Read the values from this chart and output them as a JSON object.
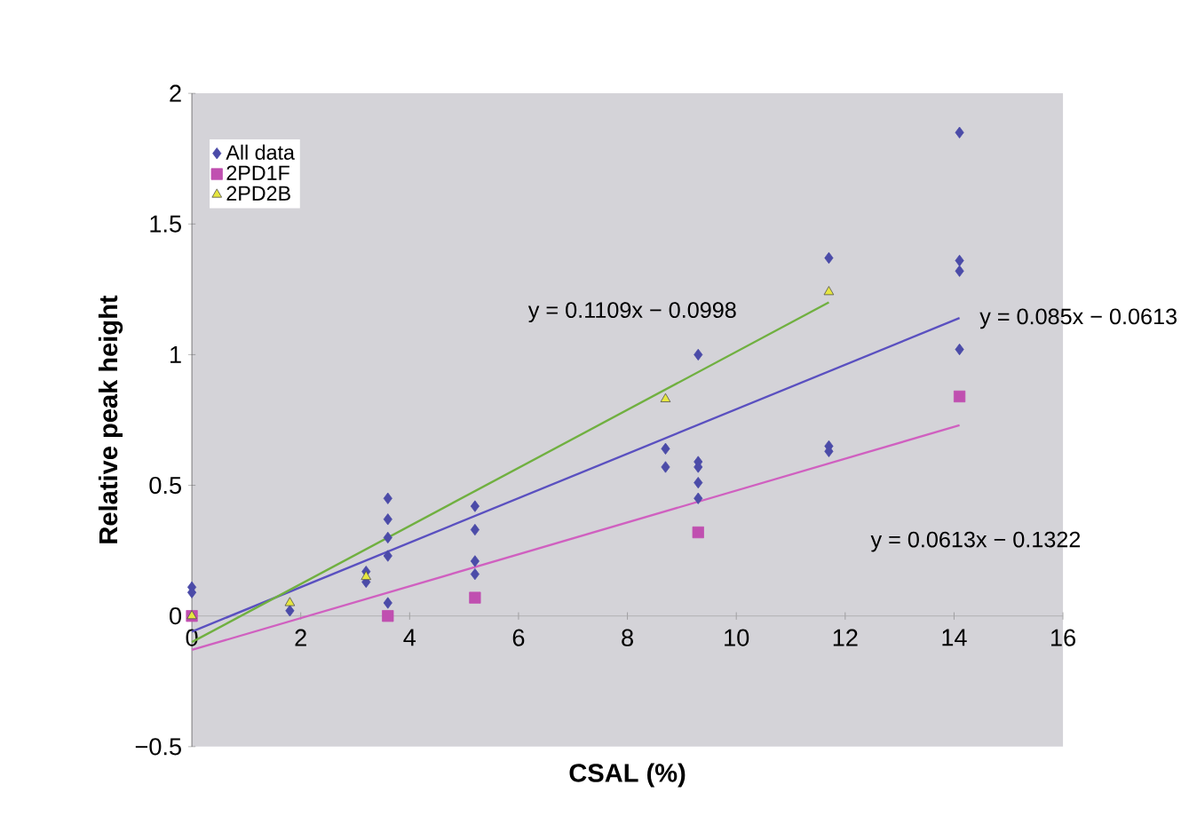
{
  "chart_data": {
    "type": "scatter",
    "xlabel": "CSAL (%)",
    "ylabel": "Relative peak height",
    "xlim": [
      0,
      16
    ],
    "ylim": [
      -0.5,
      2
    ],
    "xticks": [
      0,
      2,
      4,
      6,
      8,
      10,
      12,
      14,
      16
    ],
    "yticks": [
      {
        "value": -0.5,
        "label": "−0.5"
      },
      0,
      0.5,
      1,
      1.5,
      2
    ],
    "grid": false,
    "legend": "top left",
    "series": [
      {
        "name": "All data",
        "marker": "diamond",
        "color": "#4b4ba8",
        "x": [
          0,
          0,
          1.8,
          3.2,
          3.2,
          3.6,
          3.6,
          3.6,
          3.6,
          3.6,
          5.2,
          5.2,
          5.2,
          5.2,
          8.7,
          8.7,
          9.3,
          9.3,
          9.3,
          9.3,
          9.3,
          11.7,
          11.7,
          11.7,
          14.1,
          14.1,
          14.1,
          14.1
        ],
        "values": [
          0.11,
          0.09,
          0.02,
          0.13,
          0.17,
          0.45,
          0.37,
          0.3,
          0.23,
          0.05,
          0.42,
          0.33,
          0.21,
          0.16,
          0.64,
          0.57,
          1.0,
          0.59,
          0.57,
          0.51,
          0.45,
          0.65,
          0.63,
          1.37,
          1.85,
          1.36,
          1.32,
          1.02
        ]
      },
      {
        "name": "2PD1F",
        "marker": "square",
        "color": "#c04fb0",
        "x": [
          0,
          3.6,
          5.2,
          9.3,
          14.1
        ],
        "values": [
          0.0,
          0.0,
          0.07,
          0.32,
          0.84
        ]
      },
      {
        "name": "2PD2B",
        "marker": "triangle",
        "color": "#e6e640",
        "x": [
          0,
          1.8,
          3.2,
          8.7,
          11.7
        ],
        "values": [
          0.0,
          0.05,
          0.15,
          0.83,
          1.24
        ]
      },
      {
        "type": "line",
        "marker": "none",
        "color": "#5a50c0",
        "x": [
          0,
          14.1
        ],
        "values": [
          -0.06,
          1.14
        ]
      },
      {
        "type": "line",
        "marker": "none",
        "color": "#70b040",
        "x": [
          0,
          11.7
        ],
        "values": [
          -0.1,
          1.2
        ]
      },
      {
        "type": "line",
        "marker": "none",
        "color": "#d060c0",
        "x": [
          0,
          14.1
        ],
        "values": [
          -0.13,
          0.73
        ]
      }
    ],
    "annotations": [
      "y = 0.1109x − 0.0998",
      "y = 0.085x − 0.0613",
      "y = 0.0613x − 0.1322"
    ]
  }
}
